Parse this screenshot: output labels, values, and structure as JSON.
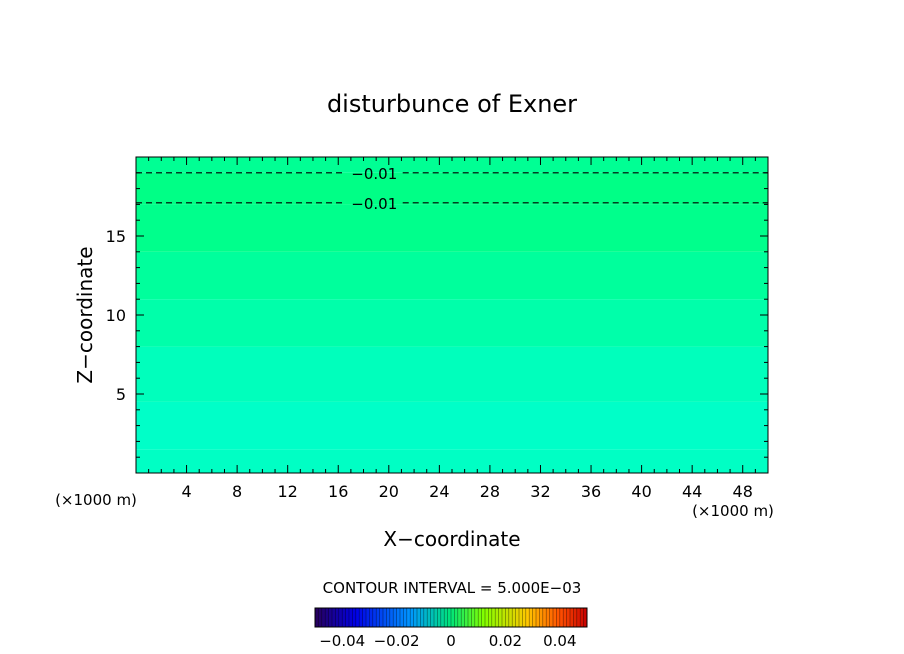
{
  "chart_data": {
    "type": "heatmap",
    "title": "disturbunce of Exner",
    "xlabel": "X−coordinate",
    "ylabel": "Z−coordinate",
    "x_unit": "(×1000 m)",
    "x_ticks": [
      "4",
      "8",
      "12",
      "16",
      "20",
      "24",
      "28",
      "32",
      "36",
      "40",
      "44",
      "48"
    ],
    "y_ticks": [
      "5",
      "10",
      "15"
    ],
    "xlim": [
      0,
      50
    ],
    "ylim": [
      0,
      20
    ],
    "bands": [
      {
        "z": [
          0,
          1.5
        ],
        "color": "#00ffc4"
      },
      {
        "z": [
          1.5,
          4.5
        ],
        "color": "#00ffc8"
      },
      {
        "z": [
          4.5,
          8
        ],
        "color": "#00ffbc"
      },
      {
        "z": [
          8,
          11
        ],
        "color": "#00ffaa"
      },
      {
        "z": [
          11,
          14
        ],
        "color": "#00ff9c"
      },
      {
        "z": [
          14,
          17
        ],
        "color": "#00ff8c"
      },
      {
        "z": [
          17,
          19
        ],
        "color": "#00ff86"
      },
      {
        "z": [
          19,
          20
        ],
        "color": "#00ff94"
      }
    ],
    "contours": [
      {
        "z": 19,
        "label": "−0.01"
      },
      {
        "z": 17.1,
        "label": "−0.01"
      }
    ],
    "contour_interval_text": "CONTOUR INTERVAL = 5.000E−03",
    "colorbar": {
      "range": [
        -0.05,
        0.05
      ],
      "tick_labels": [
        "−0.04",
        "−0.02",
        "0",
        "0.02",
        "0.04"
      ],
      "tick_values": [
        -0.04,
        -0.02,
        0,
        0.02,
        0.04
      ]
    }
  }
}
